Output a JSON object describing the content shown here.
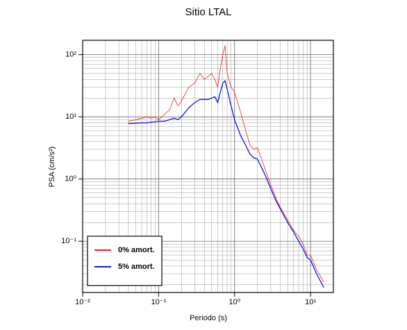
{
  "chart_data": {
    "type": "line",
    "title": "Sitio LTAL",
    "xlabel": "Periodo (s)",
    "ylabel": "PSA (cm/s²)",
    "xscale": "log",
    "yscale": "log",
    "grid": true,
    "legend": "lower left",
    "xlim": [
      0.01,
      20
    ],
    "ylim": [
      0.015,
      170
    ],
    "xticks": [
      {
        "value": 0.01,
        "label": "10⁻²"
      },
      {
        "value": 0.1,
        "label": "10⁻¹"
      },
      {
        "value": 1,
        "label": "10⁰"
      },
      {
        "value": 10,
        "label": "10¹"
      }
    ],
    "yticks": [
      {
        "value": 0.1,
        "label": "10⁻¹"
      },
      {
        "value": 1,
        "label": "10⁰"
      },
      {
        "value": 10,
        "label": "10¹"
      },
      {
        "value": 100,
        "label": "10²"
      }
    ],
    "x": [
      0.04,
      0.05,
      0.06,
      0.07,
      0.08,
      0.09,
      0.1,
      0.12,
      0.14,
      0.16,
      0.18,
      0.2,
      0.25,
      0.3,
      0.35,
      0.4,
      0.45,
      0.5,
      0.55,
      0.6,
      0.65,
      0.7,
      0.75,
      0.8,
      0.9,
      1.0,
      1.2,
      1.4,
      1.6,
      1.8,
      2.0,
      2.5,
      3,
      3.5,
      4,
      5,
      6,
      7,
      8,
      9,
      10,
      12,
      15
    ],
    "series": [
      {
        "name": "0% amort.",
        "color": "#e8201e",
        "values": [
          8.5,
          9,
          9.5,
          10,
          9.5,
          10,
          9,
          11,
          13,
          20,
          15,
          18,
          30,
          35,
          50,
          40,
          45,
          50,
          40,
          30,
          60,
          100,
          140,
          50,
          30,
          25,
          12,
          6,
          3.5,
          3,
          3.2,
          1.5,
          0.8,
          0.5,
          0.35,
          0.22,
          0.15,
          0.12,
          0.09,
          0.06,
          0.06,
          0.035,
          0.022
        ]
      },
      {
        "name": "5% amort.",
        "color": "#0a14e0",
        "values": [
          7.8,
          7.9,
          8,
          8,
          8.2,
          8.3,
          8.5,
          8.5,
          9,
          9.5,
          9,
          10,
          14,
          17,
          19,
          19,
          19,
          20,
          21,
          17,
          25,
          35,
          38,
          28,
          15,
          9,
          5,
          3.5,
          2.5,
          2.2,
          2.1,
          1.2,
          0.7,
          0.45,
          0.33,
          0.2,
          0.14,
          0.1,
          0.075,
          0.055,
          0.05,
          0.03,
          0.018
        ]
      }
    ]
  }
}
